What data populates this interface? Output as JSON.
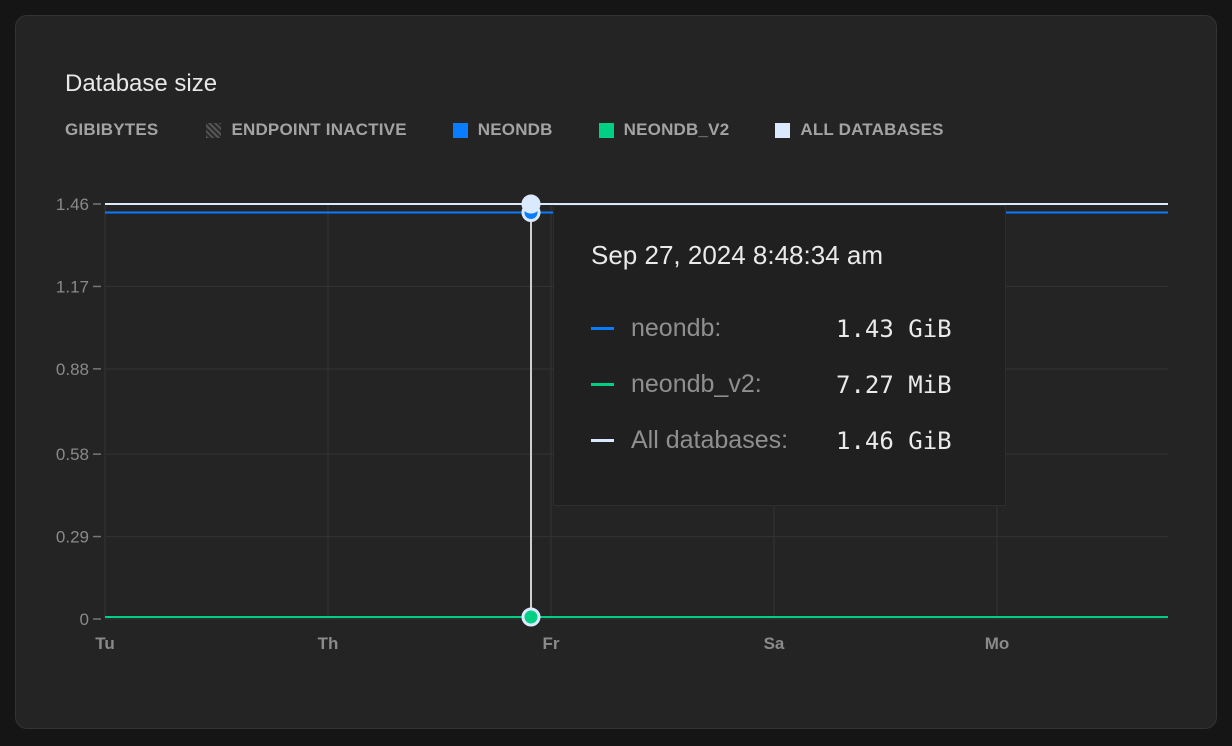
{
  "card": {
    "title": "Database size"
  },
  "legend": {
    "unit": "GIBIBYTES",
    "items": [
      {
        "label": "ENDPOINT INACTIVE",
        "color": "hatched-gray"
      },
      {
        "label": "NEONDB",
        "color": "#0a7cff"
      },
      {
        "label": "NEONDB_V2",
        "color": "#00d084"
      },
      {
        "label": "ALL DATABASES",
        "color": "#dbe9ff"
      }
    ]
  },
  "tooltip": {
    "date": "Sep 27, 2024 8:48:34 am",
    "rows": [
      {
        "name": "neondb:",
        "value": "1.43 GiB",
        "color": "#0a7cff"
      },
      {
        "name": "neondb_v2:",
        "value": "7.27 MiB",
        "color": "#00d084"
      },
      {
        "name": "All databases:",
        "value": "1.46 GiB",
        "color": "#dbe9ff"
      }
    ]
  },
  "chart_data": {
    "type": "line",
    "title": "Database size",
    "ylabel": "GIBIBYTES",
    "x_tick_labels": [
      "Tu",
      "Th",
      "Fr",
      "Sa",
      "Mo"
    ],
    "y_tick_labels": [
      "0",
      "0.29",
      "0.58",
      "0.88",
      "1.17",
      "1.46"
    ],
    "ylim": [
      0,
      1.46
    ],
    "grid": true,
    "legend_position": "top-left",
    "series": [
      {
        "name": "NEONDB",
        "color": "#0a7cff",
        "x": [
          "Tu",
          "Mo+"
        ],
        "values": [
          1.43,
          1.43
        ]
      },
      {
        "name": "NEONDB_V2",
        "color": "#00d084",
        "x": [
          "Tu",
          "Mo+"
        ],
        "values": [
          0.0071,
          0.0071
        ]
      },
      {
        "name": "ALL DATABASES",
        "color": "#dbe9ff",
        "x": [
          "Tu",
          "Mo+"
        ],
        "values": [
          1.46,
          1.46
        ]
      }
    ],
    "hover_x": "Sep 27, 2024 8:48:34 am"
  }
}
